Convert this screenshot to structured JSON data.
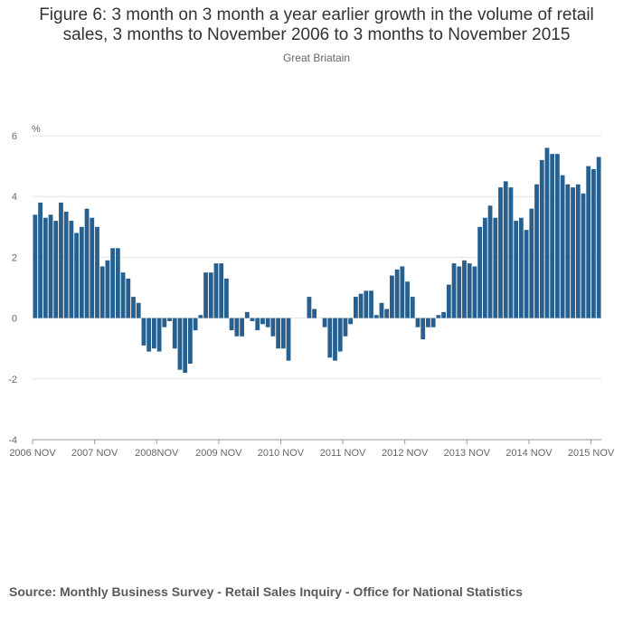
{
  "header": {
    "title_line1": "Figure 6: 3 month on 3 month a year earlier growth in the volume of retail",
    "title_line2": "sales, 3 months to November 2006 to 3 months to November 2015",
    "subtitle": "Great Briatain"
  },
  "footer": {
    "source": "Source: Monthly Business Survey - Retail Sales Inquiry - Office for National Statistics"
  },
  "chart_data": {
    "type": "bar",
    "unit_label": "%",
    "ylim": [
      -4,
      6
    ],
    "yticks": [
      -4,
      -2,
      0,
      2,
      4,
      6
    ],
    "grid": true,
    "legend": "none",
    "bar_color": "#27608e",
    "x_tick_labels": [
      "2006 NOV",
      "2007 NOV",
      "2008NOV",
      "2009 NOV",
      "2010 NOV",
      "2011 NOV",
      "2012 NOV",
      "2013 NOV",
      "2014 NOV",
      "2015 NOV"
    ],
    "x_tick_index": [
      0,
      12,
      24,
      36,
      48,
      60,
      72,
      84,
      96,
      108
    ],
    "values": [
      3.4,
      3.8,
      3.3,
      3.4,
      3.2,
      3.8,
      3.5,
      3.2,
      2.8,
      3.0,
      3.6,
      3.3,
      3.0,
      1.7,
      1.9,
      2.3,
      2.3,
      1.5,
      1.3,
      0.7,
      0.5,
      -0.9,
      -1.1,
      -1.0,
      -1.1,
      -0.3,
      -0.1,
      -1.0,
      -1.7,
      -1.8,
      -1.5,
      -0.4,
      0.1,
      1.5,
      1.5,
      1.8,
      1.8,
      1.3,
      -0.4,
      -0.6,
      -0.6,
      0.2,
      -0.1,
      -0.4,
      -0.2,
      -0.3,
      -0.6,
      -1.0,
      -1.0,
      -1.4,
      0.0,
      0.0,
      0.0,
      0.7,
      0.3,
      0.0,
      -0.3,
      -1.3,
      -1.4,
      -1.1,
      -0.6,
      -0.2,
      0.7,
      0.8,
      0.9,
      0.9,
      0.1,
      0.5,
      0.3,
      1.4,
      1.6,
      1.7,
      1.2,
      0.7,
      -0.3,
      -0.7,
      -0.3,
      -0.3,
      0.1,
      0.2,
      1.1,
      1.8,
      1.7,
      1.9,
      1.8,
      1.7,
      3.0,
      3.3,
      3.7,
      3.3,
      4.3,
      4.5,
      4.3,
      3.2,
      3.3,
      2.9,
      3.6,
      4.4,
      5.2,
      5.6,
      5.4,
      5.4,
      4.7,
      4.4,
      4.3,
      4.4,
      4.1,
      5.0,
      4.9,
      5.3
    ]
  }
}
